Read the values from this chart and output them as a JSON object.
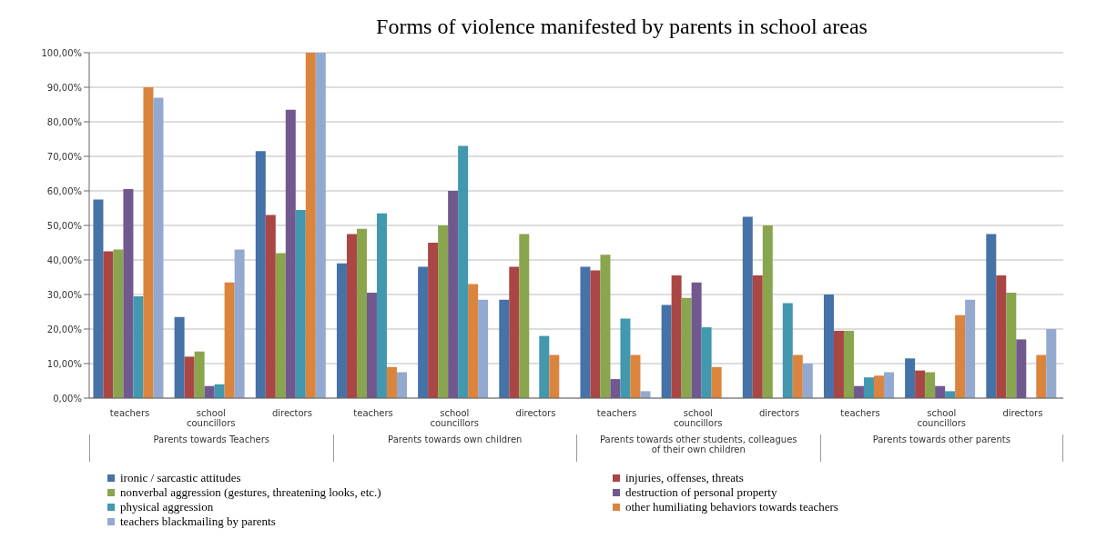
{
  "chart_data": {
    "type": "bar",
    "title": "Forms of violence manifested by parents in school areas",
    "categories": [
      "teachers",
      "school councillors",
      "directors",
      "teachers",
      "school councillors",
      "directors",
      "teachers",
      "school councillors",
      "directors",
      "teachers",
      "school councillors",
      "directors"
    ],
    "annotations": [
      "Parents towards Teachers",
      "Parents towards own children",
      "Parents towards other students, colleagues of their own children",
      "Parents towards other parents"
    ],
    "series": [
      {
        "name": "ironic / sarcastic attitudes",
        "color": "#4572a7",
        "values": [
          57.5,
          23.5,
          71.5,
          39,
          38,
          28.5,
          38,
          27,
          52.5,
          30,
          11.5,
          47.5
        ]
      },
      {
        "name": "injuries, offenses, threats",
        "color": "#aa4643",
        "values": [
          42.5,
          12,
          53,
          47.5,
          45,
          38,
          37,
          35.5,
          35.5,
          19.5,
          8,
          35.5
        ]
      },
      {
        "name": "nonverbal aggression (gestures, threatening looks, etc.)",
        "color": "#89a54e",
        "values": [
          43,
          13.5,
          42,
          49,
          50,
          47.5,
          41.5,
          29,
          50,
          19.5,
          7.5,
          30.5
        ]
      },
      {
        "name": "destruction of personal property",
        "color": "#71588f",
        "values": [
          60.5,
          3.5,
          83.5,
          30.5,
          60,
          0,
          5.5,
          33.5,
          0,
          3.5,
          3.5,
          17
        ]
      },
      {
        "name": "physical aggression",
        "color": "#4198af",
        "values": [
          29.5,
          4,
          54.5,
          53.5,
          73,
          18,
          23,
          20.5,
          27.5,
          6,
          2,
          0
        ]
      },
      {
        "name": "other humiliating behaviors towards teachers",
        "color": "#db843d",
        "values": [
          90,
          33.5,
          100,
          9,
          33,
          12.5,
          12.5,
          9,
          12.5,
          6.5,
          24,
          12.5
        ]
      },
      {
        "name": "teachers blackmailing by parents",
        "color": "#93a9cf",
        "values": [
          87,
          43,
          100,
          7.5,
          28.5,
          0,
          2,
          0,
          10,
          7.5,
          28.5,
          20
        ]
      }
    ],
    "ylim": [
      0,
      100
    ],
    "yticks": [
      {
        "value": 0,
        "label": "0,00%"
      },
      {
        "value": 10,
        "label": "10,00%"
      },
      {
        "value": 20,
        "label": "20,00%"
      },
      {
        "value": 30,
        "label": "30,00%"
      },
      {
        "value": 40,
        "label": "40,00%"
      },
      {
        "value": 50,
        "label": "50,00%"
      },
      {
        "value": 60,
        "label": "60,00%"
      },
      {
        "value": 70,
        "label": "70,00%"
      },
      {
        "value": 80,
        "label": "80,00%"
      },
      {
        "value": 90,
        "label": "90,00%"
      },
      {
        "value": 100,
        "label": "100,00%"
      }
    ],
    "grid": "y",
    "legend": "bottom"
  }
}
